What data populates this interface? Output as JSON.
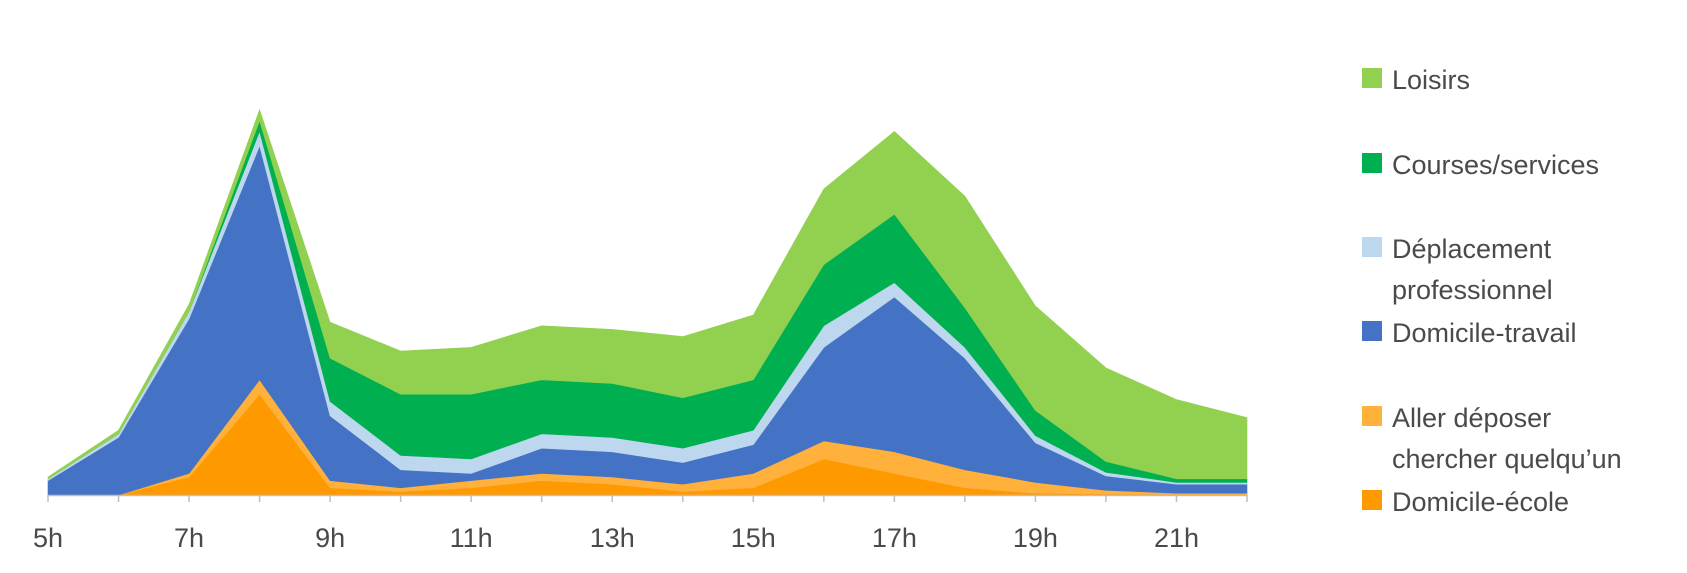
{
  "chart_data": {
    "type": "area",
    "stacked": true,
    "x": [
      "5h",
      "6h",
      "7h",
      "8h",
      "9h",
      "10h",
      "11h",
      "12h",
      "13h",
      "14h",
      "15h",
      "16h",
      "17h",
      "18h",
      "19h",
      "20h",
      "21h",
      "22h"
    ],
    "x_tick_labels": [
      "5h",
      "7h",
      "9h",
      "11h",
      "13h",
      "15h",
      "17h",
      "19h",
      "21h"
    ],
    "title": "",
    "xlabel": "",
    "ylabel": "",
    "y_axis_visible": false,
    "grid": false,
    "legend_position": "right",
    "series": [
      {
        "name": "Domicile-école",
        "color": "#FF9900",
        "values": [
          0,
          0,
          5,
          28,
          2,
          1,
          2,
          4,
          3,
          1,
          2,
          10,
          6,
          2,
          0.5,
          0.3,
          0.2,
          0.2
        ]
      },
      {
        "name": "Aller déposer\nchercher quelqu'un",
        "color": "#FFB13B",
        "values": [
          0,
          0,
          1,
          4,
          2,
          1,
          2,
          2,
          2,
          2,
          4,
          5,
          6,
          5,
          3,
          1,
          0.3,
          0.3
        ]
      },
      {
        "name": "Domicile-travail",
        "color": "#4472C4",
        "values": [
          4,
          16,
          43,
          65,
          18,
          5,
          2,
          7,
          7,
          6,
          8,
          26,
          43,
          31,
          11,
          4,
          2.5,
          2.5
        ]
      },
      {
        "name": "Déplacement professionnel",
        "color": "#BDD7EE",
        "values": [
          0.5,
          1,
          2,
          4,
          4,
          4,
          4,
          4,
          4,
          4,
          4,
          6,
          4,
          3,
          2,
          1,
          0.5,
          0.5
        ]
      },
      {
        "name": "Courses/services",
        "color": "#00B050",
        "values": [
          0,
          0,
          0,
          3,
          12,
          17,
          18,
          15,
          15,
          14,
          14,
          17,
          19,
          11,
          7,
          3,
          1,
          1
        ]
      },
      {
        "name": "Loisirs",
        "color": "#92D050",
        "values": [
          0.5,
          1,
          2,
          3,
          10,
          12,
          13,
          15,
          15,
          17,
          18,
          21,
          23,
          31,
          29,
          26,
          22,
          17
        ]
      }
    ]
  },
  "legend": {
    "items": [
      {
        "label": "Loisirs",
        "color": "#92D050"
      },
      {
        "label": "Courses/services",
        "color": "#00B050"
      },
      {
        "label": "Déplacement\nprofessionnel",
        "color": "#BDD7EE"
      },
      {
        "label": "Domicile-travail",
        "color": "#4472C4"
      },
      {
        "label": "Aller déposer\nchercher quelqu’un",
        "color": "#FFB13B"
      },
      {
        "label": "Domicile-école",
        "color": "#FF9900"
      }
    ]
  }
}
